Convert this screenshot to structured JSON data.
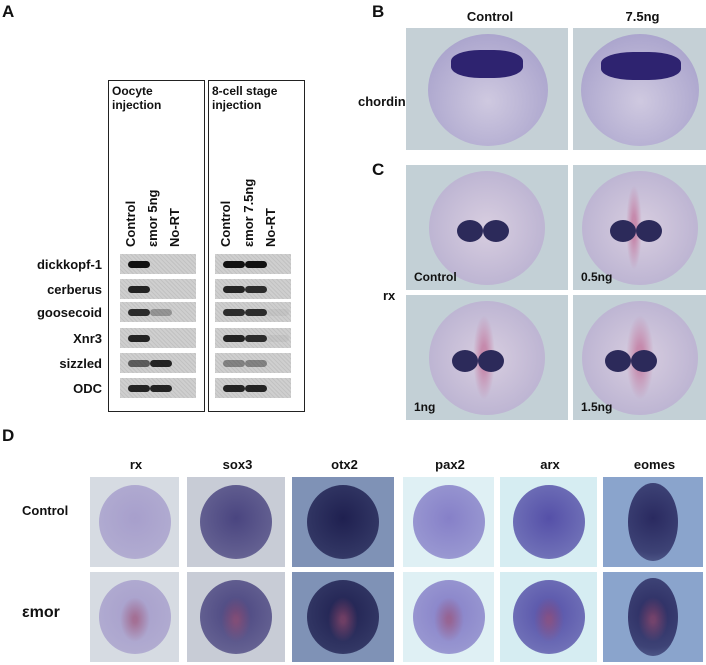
{
  "panels": {
    "A": "A",
    "B": "B",
    "C": "C",
    "D": "D"
  },
  "panelA": {
    "groups": [
      {
        "title": "Oocyte\ninjection",
        "lanes": [
          "Control",
          "εmor 5ng",
          "No-RT"
        ]
      },
      {
        "title": "8-cell stage\ninjection",
        "lanes": [
          "Control",
          "εmor 7.5ng",
          "No-RT"
        ]
      }
    ],
    "genes": [
      "dickkopf-1",
      "cerberus",
      "goosecoid",
      "Xnr3",
      "sizzled",
      "ODC"
    ],
    "band_intensity": [
      [
        [
          1,
          0,
          0
        ],
        [
          1,
          1,
          0
        ]
      ],
      [
        [
          0.9,
          0,
          0
        ],
        [
          0.9,
          0.85,
          0
        ]
      ],
      [
        [
          0.85,
          0.3,
          0
        ],
        [
          0.85,
          0.85,
          0.05
        ]
      ],
      [
        [
          0.9,
          0,
          0
        ],
        [
          0.9,
          0.85,
          0.05
        ]
      ],
      [
        [
          0.6,
          0.9,
          0
        ],
        [
          0.4,
          0.4,
          0
        ]
      ],
      [
        [
          0.9,
          0.9,
          0
        ],
        [
          0.9,
          0.9,
          0
        ]
      ]
    ]
  },
  "panelB": {
    "columns": [
      "Control",
      "7.5ng"
    ],
    "row": "chordin"
  },
  "panelC": {
    "row": "rx",
    "images": [
      "Control",
      "0.5ng",
      "1ng",
      "1.5ng"
    ]
  },
  "panelD": {
    "columns": [
      "rx",
      "sox3",
      "otx2",
      "pax2",
      "arx",
      "eomes"
    ],
    "rows": [
      "Control",
      "εmor"
    ]
  }
}
